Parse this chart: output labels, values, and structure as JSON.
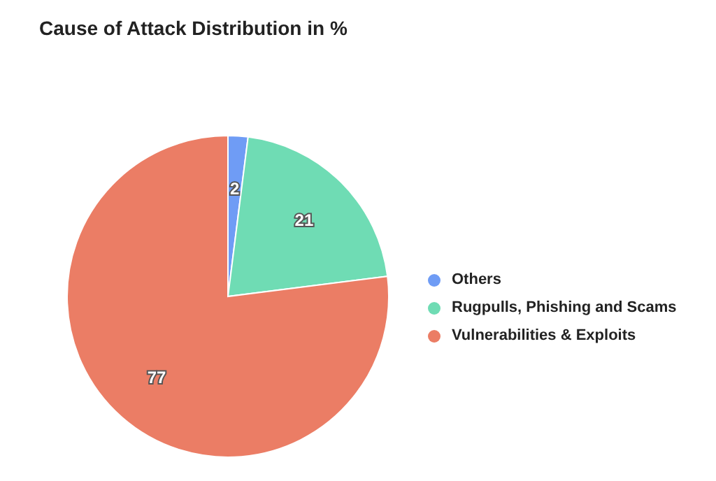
{
  "chart_data": {
    "type": "pie",
    "title": "Cause of Attack Distribution in %",
    "categories": [
      "Others",
      "Rugpulls, Phishing and Scams",
      "Vulnerabilities & Exploits"
    ],
    "values": [
      2,
      21,
      77
    ],
    "colors": [
      "#6f9cf5",
      "#6fdcb4",
      "#eb7d65"
    ],
    "data_labels": true,
    "legend": "right"
  }
}
